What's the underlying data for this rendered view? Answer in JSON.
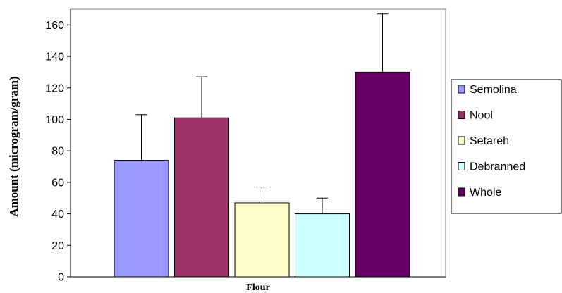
{
  "chart_data": {
    "type": "bar",
    "xlabel": "Flour",
    "ylabel": "Amount (microgram/gram)",
    "ylim": [
      0,
      170
    ],
    "yticks": [
      0,
      20,
      40,
      60,
      80,
      100,
      120,
      140,
      160
    ],
    "grid": false,
    "legend_position": "right",
    "series": [
      {
        "name": "Semolina",
        "value": 74,
        "error": 29,
        "color": "#9999ff"
      },
      {
        "name": "Nool",
        "value": 101,
        "error": 26,
        "color": "#993366"
      },
      {
        "name": "Setareh",
        "value": 47,
        "error": 10,
        "color": "#ffffcc"
      },
      {
        "name": "Debranned",
        "value": 40,
        "error": 10,
        "color": "#ccffff"
      },
      {
        "name": "Whole",
        "value": 130,
        "error": 37,
        "color": "#660066"
      }
    ]
  }
}
